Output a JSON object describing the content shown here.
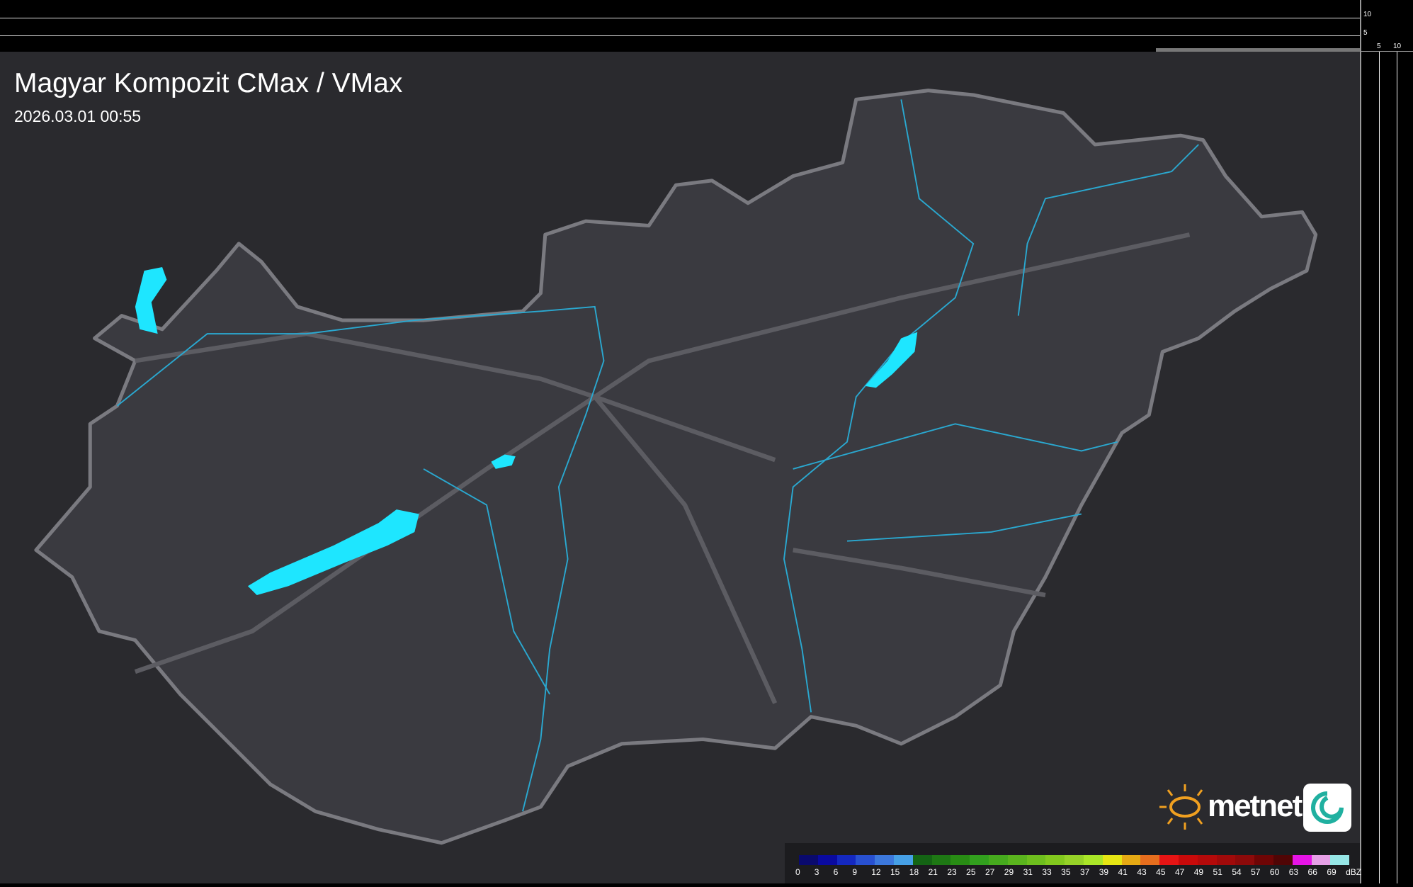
{
  "header": {
    "title": "Magyar Kompozit CMax / VMax",
    "timestamp": "2026.03.01 00:55"
  },
  "profile_axes": {
    "vertical_ticks": [
      "10",
      "5"
    ],
    "horizontal_ticks": [
      "5",
      "10"
    ]
  },
  "legend": {
    "unit": "dBZ",
    "labels": [
      "0",
      "3",
      "6",
      "9",
      "12",
      "15",
      "18",
      "21",
      "23",
      "25",
      "27",
      "29",
      "31",
      "33",
      "35",
      "37",
      "39",
      "41",
      "43",
      "45",
      "47",
      "49",
      "51",
      "54",
      "57",
      "60",
      "63",
      "66",
      "69"
    ],
    "colors": [
      "#0a0a6e",
      "#0a0aa0",
      "#1428c0",
      "#2850d0",
      "#3c78dc",
      "#46a0e6",
      "#146414",
      "#1e7814",
      "#288c14",
      "#32a01e",
      "#46aa1e",
      "#5ab41e",
      "#6ebe1e",
      "#82c81e",
      "#96d228",
      "#aae628",
      "#e6e614",
      "#e6aa14",
      "#e66e1e",
      "#e61414",
      "#c80a0a",
      "#b40a0a",
      "#a00a0a",
      "#8c0a0a",
      "#6e0505",
      "#500505",
      "#e614e6",
      "#e6a0e6",
      "#96e6e6"
    ]
  },
  "logo": {
    "text": "metnet"
  },
  "map_colors": {
    "background": "#2a2a2e",
    "country": "#3a3a40",
    "border": "#7a7a80",
    "water": "#1ee6ff",
    "river": "#2aa8d0"
  }
}
